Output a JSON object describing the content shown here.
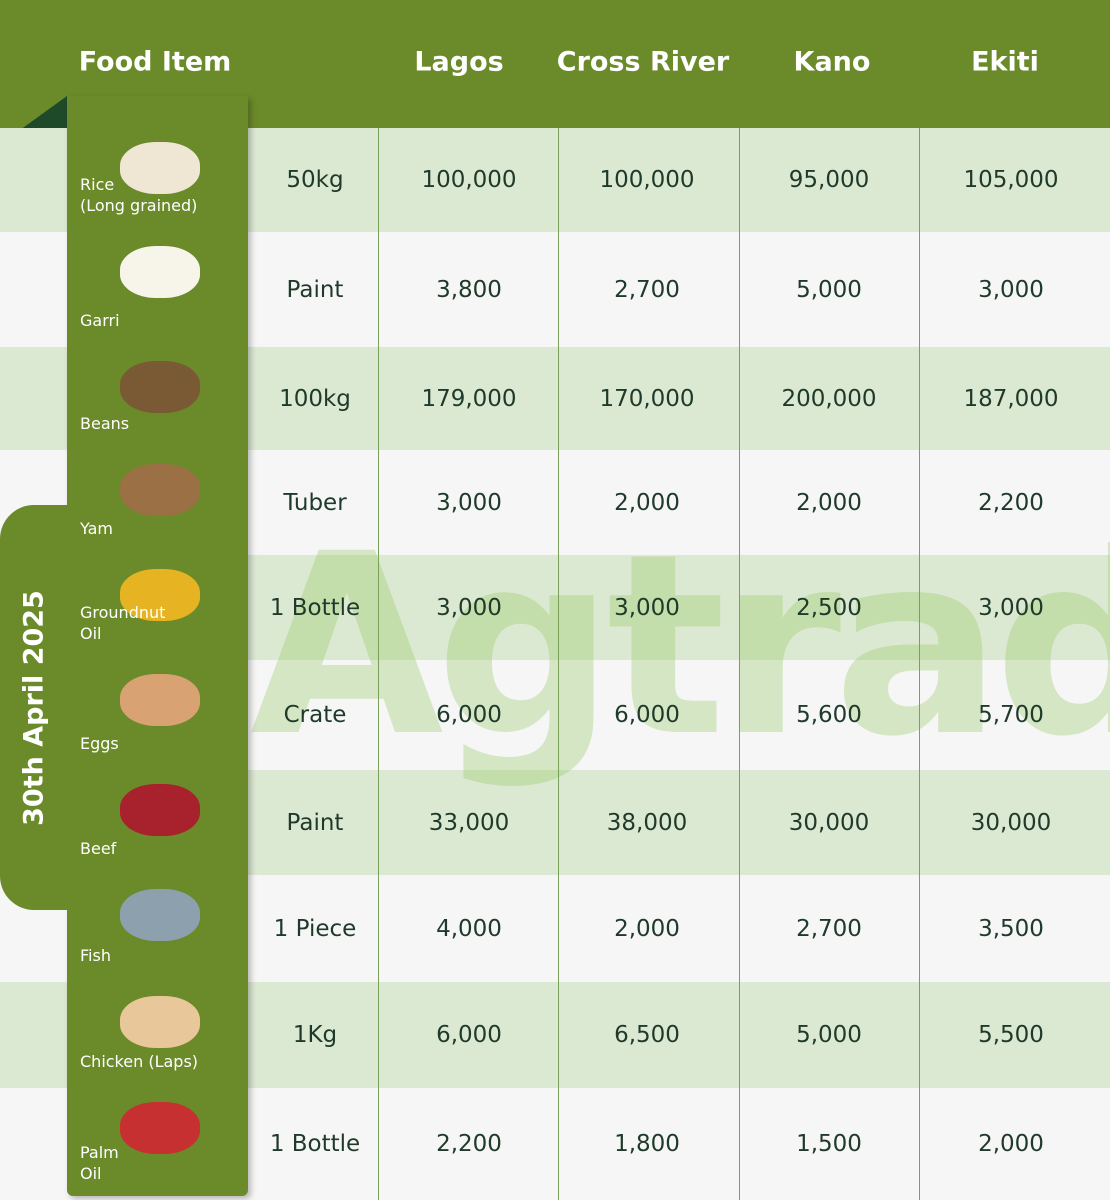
{
  "date_label": "30th April 2025",
  "watermark": "Agtrade",
  "table": {
    "header": [
      "Food Item",
      "Lagos",
      "Cross River",
      "Kano",
      "Ekiti"
    ],
    "rows": [
      {
        "name": [
          "Rice",
          "(Long grained)"
        ],
        "unit": "50kg",
        "prices": [
          "100,000",
          "100,000",
          "95,000",
          "105,000"
        ]
      },
      {
        "name": [
          "Garri"
        ],
        "unit": "Paint",
        "prices": [
          "3,800",
          "2,700",
          "5,000",
          "3,000"
        ]
      },
      {
        "name": [
          "Beans"
        ],
        "unit": "100kg",
        "prices": [
          "179,000",
          "170,000",
          "200,000",
          "187,000"
        ]
      },
      {
        "name": [
          "Yam"
        ],
        "unit": "Tuber",
        "prices": [
          "3,000",
          "2,000",
          "2,000",
          "2,200"
        ]
      },
      {
        "name": [
          "Groundnut",
          "Oil"
        ],
        "unit": "1 Bottle",
        "prices": [
          "3,000",
          "3,000",
          "2,500",
          "3,000"
        ]
      },
      {
        "name": [
          "Eggs"
        ],
        "unit": "Crate",
        "prices": [
          "6,000",
          "6,000",
          "5,600",
          "5,700"
        ]
      },
      {
        "name": [
          "Beef"
        ],
        "unit": "Paint",
        "prices": [
          "33,000",
          "38,000",
          "30,000",
          "30,000"
        ]
      },
      {
        "name": [
          "Fish"
        ],
        "unit": "1 Piece",
        "prices": [
          "4,000",
          "2,000",
          "2,700",
          "3,500"
        ]
      },
      {
        "name": [
          "Chicken (Laps)"
        ],
        "unit": "1Kg",
        "prices": [
          "6,000",
          "6,500",
          "5,000",
          "5,500"
        ]
      },
      {
        "name": [
          "Palm",
          "Oil"
        ],
        "unit": "1 Bottle",
        "prices": [
          "2,200",
          "1,800",
          "1,500",
          "2,000"
        ]
      }
    ]
  }
}
